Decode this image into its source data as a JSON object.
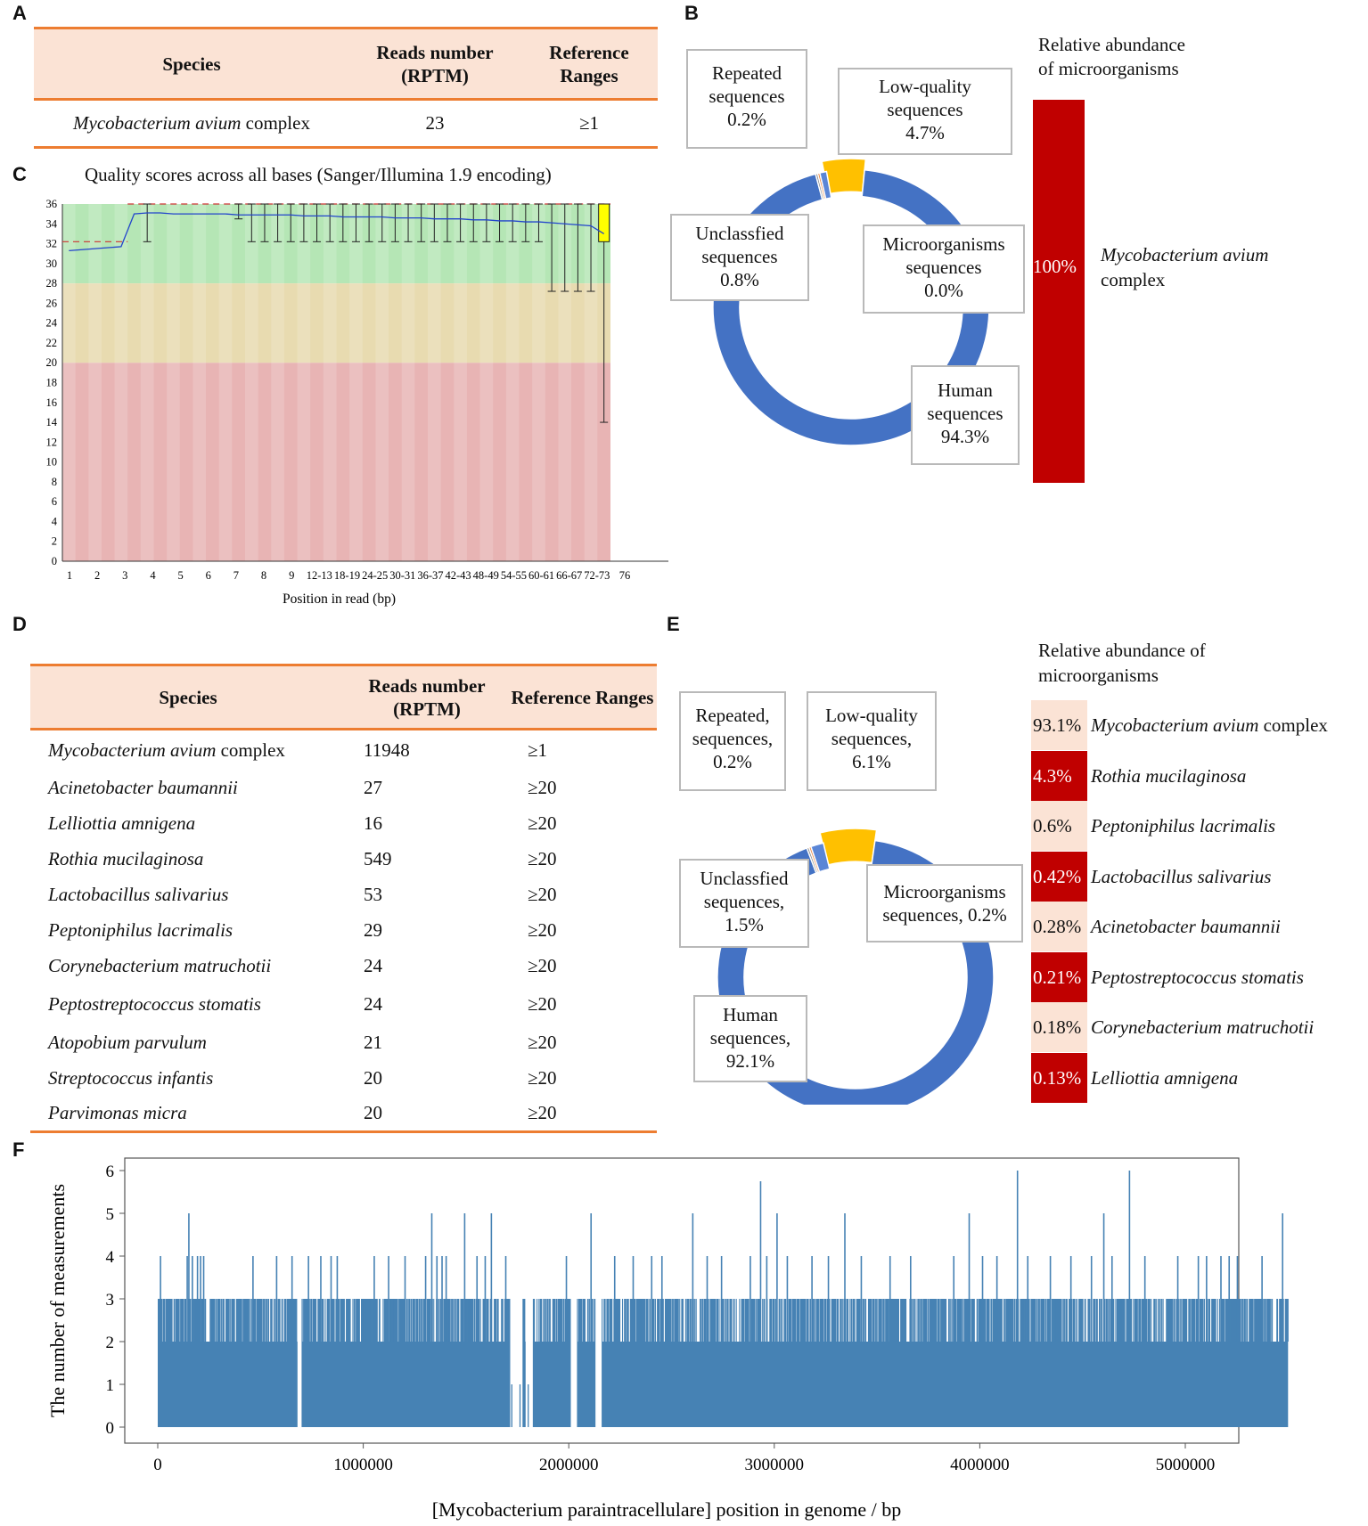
{
  "panels": {
    "A": "A",
    "B": "B",
    "C": "C",
    "D": "D",
    "E": "E",
    "F": "F"
  },
  "table_a": {
    "headers": {
      "species": "Species",
      "reads": "Reads number (RPTM)",
      "ref": "Reference Ranges"
    },
    "rows": [
      {
        "species_italic": "Mycobacterium avium",
        "species_rest": " complex",
        "reads": "23",
        "ref": "≥1"
      }
    ]
  },
  "table_d": {
    "headers": {
      "species": "Species",
      "reads": "Reads number (RPTM)",
      "ref": "Reference Ranges"
    },
    "rows": [
      {
        "species_italic": "Mycobacterium avium",
        "species_rest": " complex",
        "reads": "11948",
        "ref": "≥1"
      },
      {
        "species_italic": "Acinetobacter baumannii",
        "species_rest": "",
        "reads": "27",
        "ref": "≥20"
      },
      {
        "species_italic": "Lelliottia amnigena",
        "species_rest": "",
        "reads": "16",
        "ref": "≥20"
      },
      {
        "species_italic": "Rothia mucilaginosa",
        "species_rest": "",
        "reads": "549",
        "ref": "≥20"
      },
      {
        "species_italic": "Lactobacillus salivarius",
        "species_rest": "",
        "reads": "53",
        "ref": "≥20"
      },
      {
        "species_italic": "Peptoniphilus lacrimalis",
        "species_rest": "",
        "reads": "29",
        "ref": "≥20"
      },
      {
        "species_italic": "Corynebacterium matruchotii",
        "species_rest": "",
        "reads": "24",
        "ref": "≥20"
      },
      {
        "species_italic": "Peptostreptococcus stomatis",
        "species_rest": "",
        "reads": "24",
        "ref": "≥20"
      },
      {
        "species_italic": "Atopobium parvulum",
        "species_rest": "",
        "reads": "21",
        "ref": "≥20"
      },
      {
        "species_italic": "Streptococcus infantis",
        "species_rest": "",
        "reads": "20",
        "ref": "≥20"
      },
      {
        "species_italic": "Parvimonas micra",
        "species_rest": "",
        "reads": "20",
        "ref": "≥20"
      }
    ]
  },
  "donut_b": {
    "callouts": {
      "repeated": [
        "Repeated",
        "sequences",
        "0.2%"
      ],
      "lowq": [
        "Low-quality",
        "sequences",
        "4.7%"
      ],
      "unclass": [
        "Unclassfied",
        "sequences",
        "0.8%"
      ],
      "micro": [
        "Microorganisms",
        "sequences",
        "0.0%"
      ],
      "human": [
        "Human",
        "sequences",
        "94.3%"
      ]
    }
  },
  "abundance_b": {
    "title_line1": "Relative abundance",
    "title_line2": "of microorganisms",
    "pct": "100%",
    "name_line1": "Mycobacterium avium",
    "name_line2": "complex"
  },
  "donut_e": {
    "callouts": {
      "repeated": [
        "Repeated,",
        "sequences,",
        "0.2%"
      ],
      "lowq": [
        "Low-quality",
        "sequences,",
        "6.1%"
      ],
      "unclass": [
        "Unclassfied",
        "sequences,",
        "1.5%"
      ],
      "micro": [
        "Microorganisms",
        "sequences, 0.2%"
      ],
      "human": [
        "Human",
        "sequences,",
        "92.1%"
      ]
    }
  },
  "abundance_e": {
    "title_line1": "Relative abundance of",
    "title_line2": "microorganisms",
    "rows": [
      {
        "pct": "93.1%",
        "name_italic": "Mycobacterium avium",
        "name_rest": " complex",
        "dark": false
      },
      {
        "pct": "4.3%",
        "name_italic": "Rothia mucilaginosa",
        "name_rest": "",
        "dark": true
      },
      {
        "pct": "0.6%",
        "name_italic": "Peptoniphilus lacrimalis",
        "name_rest": "",
        "dark": false
      },
      {
        "pct": "0.42%",
        "name_italic": "Lactobacillus salivarius",
        "name_rest": "",
        "dark": true
      },
      {
        "pct": "0.28%",
        "name_italic": "Acinetobacter baumannii",
        "name_rest": "",
        "dark": false
      },
      {
        "pct": "0.21%",
        "name_italic": "Peptostreptococcus stomatis",
        "name_rest": "",
        "dark": true
      },
      {
        "pct": "0.18%",
        "name_italic": "Corynebacterium matruchotii",
        "name_rest": "",
        "dark": false
      },
      {
        "pct": "0.13%",
        "name_italic": "Lelliottia amnigena",
        "name_rest": "",
        "dark": true
      }
    ]
  },
  "colors": {
    "orange": "#ed7d31",
    "peach": "#fbe3d5",
    "blue": "#4472c4",
    "gold": "#ffc000",
    "darkred": "#c00000",
    "steel": "#4682b4",
    "green_zone": "#b5e6b5",
    "amber_zone": "#e8dbb0",
    "red_zone": "#e8b4b4",
    "yellow_box": "#ffff00"
  },
  "chart_data": [
    {
      "type": "line",
      "title": "Quality scores across all bases (Sanger/Illumina 1.9 encoding)",
      "xlabel": "Position in read (bp)",
      "ylabel": "",
      "ylim": [
        0,
        36
      ],
      "x_tick_labels": [
        "1",
        "2",
        "3",
        "4",
        "5",
        "6",
        "7",
        "8",
        "9",
        "12-13",
        "18-19",
        "24-25",
        "30-31",
        "36-37",
        "42-43",
        "48-49",
        "54-55",
        "60-61",
        "66-67",
        "72-73",
        "76"
      ],
      "y_tick_labels": [
        "0",
        "2",
        "4",
        "6",
        "8",
        "10",
        "12",
        "14",
        "16",
        "18",
        "20",
        "22",
        "24",
        "26",
        "28",
        "30",
        "32",
        "34",
        "36"
      ],
      "zones": [
        {
          "from": 28,
          "to": 36,
          "name": "good"
        },
        {
          "from": 20,
          "to": 28,
          "name": "reasonable"
        },
        {
          "from": 0,
          "to": 20,
          "name": "poor"
        }
      ],
      "mean_quality": [
        31.3,
        31.4,
        31.5,
        31.6,
        31.7,
        35.0,
        35.1,
        35.1,
        35.0,
        35.0,
        35.0,
        35.0,
        35.0,
        34.9,
        34.9,
        34.9,
        34.9,
        34.9,
        34.8,
        34.8,
        34.8,
        34.7,
        34.7,
        34.7,
        34.7,
        34.6,
        34.6,
        34.6,
        34.5,
        34.5,
        34.5,
        34.4,
        34.4,
        34.3,
        34.3,
        34.2,
        34.2,
        34.1,
        34.0,
        33.9,
        33.8,
        33.0
      ],
      "whisker_low": [
        null,
        null,
        null,
        null,
        null,
        null,
        32.2,
        null,
        null,
        null,
        null,
        null,
        null,
        34.5,
        32.2,
        32.2,
        32.2,
        32.2,
        32.2,
        32.2,
        32.2,
        32.2,
        32.2,
        32.2,
        32.2,
        32.2,
        32.2,
        32.2,
        32.2,
        32.2,
        32.2,
        32.2,
        32.2,
        32.2,
        32.2,
        32.2,
        32.2,
        27.2,
        27.2,
        27.2,
        27.2,
        14.0
      ],
      "whisker_high": [
        null,
        null,
        null,
        null,
        null,
        null,
        36,
        null,
        null,
        null,
        null,
        null,
        null,
        36,
        36,
        36,
        36,
        36,
        36,
        36,
        36,
        36,
        36,
        36,
        36,
        36,
        36,
        36,
        36,
        36,
        36,
        36,
        36,
        36,
        36,
        36,
        36,
        36,
        36,
        36,
        36,
        36
      ]
    },
    {
      "type": "pie",
      "title": "",
      "labels": [
        "Human sequences",
        "Low-quality sequences",
        "Unclassfied sequences",
        "Repeated sequences",
        "Microorganisms sequences"
      ],
      "values": [
        94.3,
        4.7,
        0.8,
        0.2,
        0.0
      ]
    },
    {
      "type": "bar",
      "title": "Relative abundance of microorganisms",
      "categories": [
        "Mycobacterium avium complex"
      ],
      "values": [
        100
      ]
    },
    {
      "type": "pie",
      "title": "",
      "labels": [
        "Human sequences",
        "Low-quality sequences",
        "Unclassfied sequences",
        "Repeated sequences",
        "Microorganisms sequences"
      ],
      "values": [
        92.1,
        6.1,
        1.5,
        0.2,
        0.2
      ]
    },
    {
      "type": "bar",
      "title": "Relative abundance of microorganisms",
      "categories": [
        "Mycobacterium avium complex",
        "Rothia mucilaginosa",
        "Peptoniphilus lacrimalis",
        "Lactobacillus salivarius",
        "Acinetobacter baumannii",
        "Peptostreptococcus stomatis",
        "Corynebacterium matruchotii",
        "Lelliottia amnigena"
      ],
      "values": [
        93.1,
        4.3,
        0.6,
        0.42,
        0.28,
        0.21,
        0.18,
        0.13
      ]
    },
    {
      "type": "bar",
      "title": "",
      "xlabel": "[Mycobacterium paraintracellulare] position in genome / bp",
      "ylabel": "The number of measurements",
      "xlim": [
        0,
        5500000
      ],
      "ylim": [
        0,
        6
      ],
      "x_tick_labels": [
        "0",
        "1000000",
        "2000000",
        "3000000",
        "4000000",
        "5000000"
      ],
      "y_tick_labels": [
        "0",
        "1",
        "2",
        "3",
        "4",
        "5",
        "6"
      ],
      "baseline_level": 2,
      "gaps": [
        [
          680000,
          700000
        ],
        [
          1715000,
          1775000
        ],
        [
          1790000,
          1825000
        ],
        [
          2010000,
          2040000
        ],
        [
          2130000,
          2160000
        ]
      ],
      "spikes": [
        {
          "x": 10000,
          "v": 4
        },
        {
          "x": 140000,
          "v": 4
        },
        {
          "x": 148000,
          "v": 5
        },
        {
          "x": 165000,
          "v": 4
        },
        {
          "x": 190000,
          "v": 4
        },
        {
          "x": 205000,
          "v": 4
        },
        {
          "x": 220000,
          "v": 4
        },
        {
          "x": 460000,
          "v": 4
        },
        {
          "x": 575000,
          "v": 4
        },
        {
          "x": 650000,
          "v": 4
        },
        {
          "x": 730000,
          "v": 4
        },
        {
          "x": 790000,
          "v": 4
        },
        {
          "x": 840000,
          "v": 4
        },
        {
          "x": 870000,
          "v": 4
        },
        {
          "x": 1050000,
          "v": 4
        },
        {
          "x": 1120000,
          "v": 4
        },
        {
          "x": 1200000,
          "v": 4
        },
        {
          "x": 1300000,
          "v": 4
        },
        {
          "x": 1330000,
          "v": 5
        },
        {
          "x": 1355000,
          "v": 4
        },
        {
          "x": 1380000,
          "v": 4
        },
        {
          "x": 1400000,
          "v": 4
        },
        {
          "x": 1490000,
          "v": 5
        },
        {
          "x": 1550000,
          "v": 4
        },
        {
          "x": 1590000,
          "v": 4
        },
        {
          "x": 1620000,
          "v": 5
        },
        {
          "x": 1690000,
          "v": 4
        },
        {
          "x": 1985000,
          "v": 4
        },
        {
          "x": 2105000,
          "v": 5
        },
        {
          "x": 2220000,
          "v": 4
        },
        {
          "x": 2310000,
          "v": 4
        },
        {
          "x": 2400000,
          "v": 4
        },
        {
          "x": 2450000,
          "v": 4
        },
        {
          "x": 2600000,
          "v": 5
        },
        {
          "x": 2670000,
          "v": 4
        },
        {
          "x": 2740000,
          "v": 4
        },
        {
          "x": 2880000,
          "v": 4
        },
        {
          "x": 2930000,
          "v": 5.75
        },
        {
          "x": 2960000,
          "v": 4
        },
        {
          "x": 3010000,
          "v": 5
        },
        {
          "x": 3060000,
          "v": 4
        },
        {
          "x": 3180000,
          "v": 4
        },
        {
          "x": 3260000,
          "v": 4
        },
        {
          "x": 3340000,
          "v": 5
        },
        {
          "x": 3420000,
          "v": 4
        },
        {
          "x": 3560000,
          "v": 4
        },
        {
          "x": 3660000,
          "v": 4
        },
        {
          "x": 3870000,
          "v": 4
        },
        {
          "x": 3945000,
          "v": 5
        },
        {
          "x": 4010000,
          "v": 4
        },
        {
          "x": 4080000,
          "v": 4
        },
        {
          "x": 4180000,
          "v": 6
        },
        {
          "x": 4230000,
          "v": 4
        },
        {
          "x": 4340000,
          "v": 4
        },
        {
          "x": 4440000,
          "v": 4
        },
        {
          "x": 4540000,
          "v": 4
        },
        {
          "x": 4600000,
          "v": 5
        },
        {
          "x": 4640000,
          "v": 4
        },
        {
          "x": 4725000,
          "v": 6
        },
        {
          "x": 4800000,
          "v": 4
        },
        {
          "x": 4960000,
          "v": 4
        },
        {
          "x": 5060000,
          "v": 4
        },
        {
          "x": 5100000,
          "v": 4
        },
        {
          "x": 5170000,
          "v": 4
        },
        {
          "x": 5210000,
          "v": 4
        },
        {
          "x": 5250000,
          "v": 4
        },
        {
          "x": 5370000,
          "v": 4
        },
        {
          "x": 5470000,
          "v": 5
        }
      ]
    }
  ]
}
